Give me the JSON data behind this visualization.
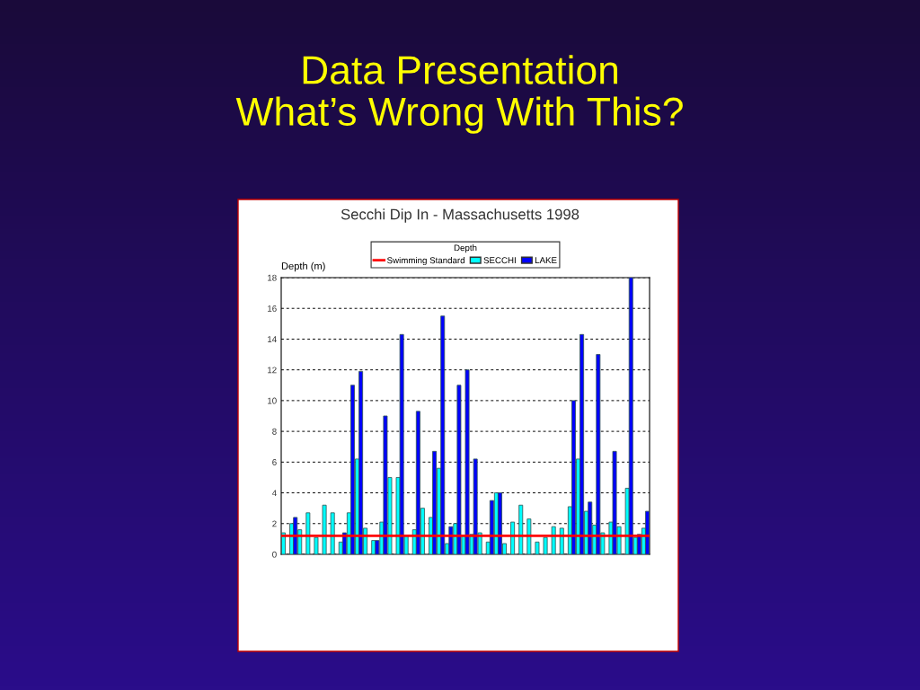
{
  "chart_data": {
    "type": "bar",
    "title": "Data Presentation\nWhat’s Wrong With This?",
    "subtitle": "Secchi Dip In - Massachusetts 1998",
    "ylabel": "Depth (m)",
    "legend_title": "Depth",
    "categories": [
      null,
      null,
      null,
      null,
      null,
      null,
      null,
      null,
      null,
      null,
      null,
      null,
      null,
      null,
      null,
      null,
      null,
      null,
      null,
      null,
      null,
      null,
      null,
      null,
      null,
      null,
      null,
      null,
      null,
      null,
      null,
      null,
      null,
      null,
      null,
      null,
      null,
      null,
      null,
      null,
      null,
      null,
      null,
      null,
      null
    ],
    "series": [
      {
        "name": "SECCHI",
        "color": "#00ffff",
        "values": [
          1.4,
          2.0,
          1.6,
          2.7,
          1.1,
          3.2,
          2.7,
          0.8,
          2.7,
          6.2,
          1.7,
          0.9,
          2.1,
          5.0,
          5.0,
          1.2,
          1.6,
          3.0,
          2.4,
          5.6,
          0.7,
          2.0,
          1.2,
          1.3,
          1.4,
          0.8,
          4.0,
          0.7,
          2.1,
          3.2,
          2.3,
          0.8,
          1.1,
          1.8,
          1.7,
          3.1,
          6.2,
          2.8,
          1.9,
          1.4,
          2.1,
          1.8,
          4.3,
          1.1,
          1.7
        ]
      },
      {
        "name": "LAKE",
        "color": "#0000ff",
        "values": [
          null,
          2.4,
          null,
          null,
          null,
          null,
          null,
          1.4,
          11.0,
          11.9,
          null,
          0.9,
          9.0,
          null,
          14.3,
          null,
          9.3,
          null,
          6.7,
          15.5,
          1.8,
          11.0,
          12.0,
          6.2,
          null,
          3.5,
          4.0,
          null,
          null,
          null,
          null,
          null,
          null,
          null,
          null,
          10.0,
          14.3,
          3.4,
          13.0,
          null,
          6.7,
          null,
          18.0,
          1.3,
          2.8
        ]
      }
    ],
    "ref_lines": [
      {
        "axis": "y",
        "value": 1.2,
        "label": "Swimming Standard",
        "color": "#ff0000",
        "line_style": "solid"
      }
    ],
    "ylim": [
      0,
      18
    ],
    "yticks": [
      0,
      2,
      4,
      6,
      8,
      10,
      12,
      14,
      16,
      18
    ],
    "grid": "y",
    "legend": "top"
  }
}
